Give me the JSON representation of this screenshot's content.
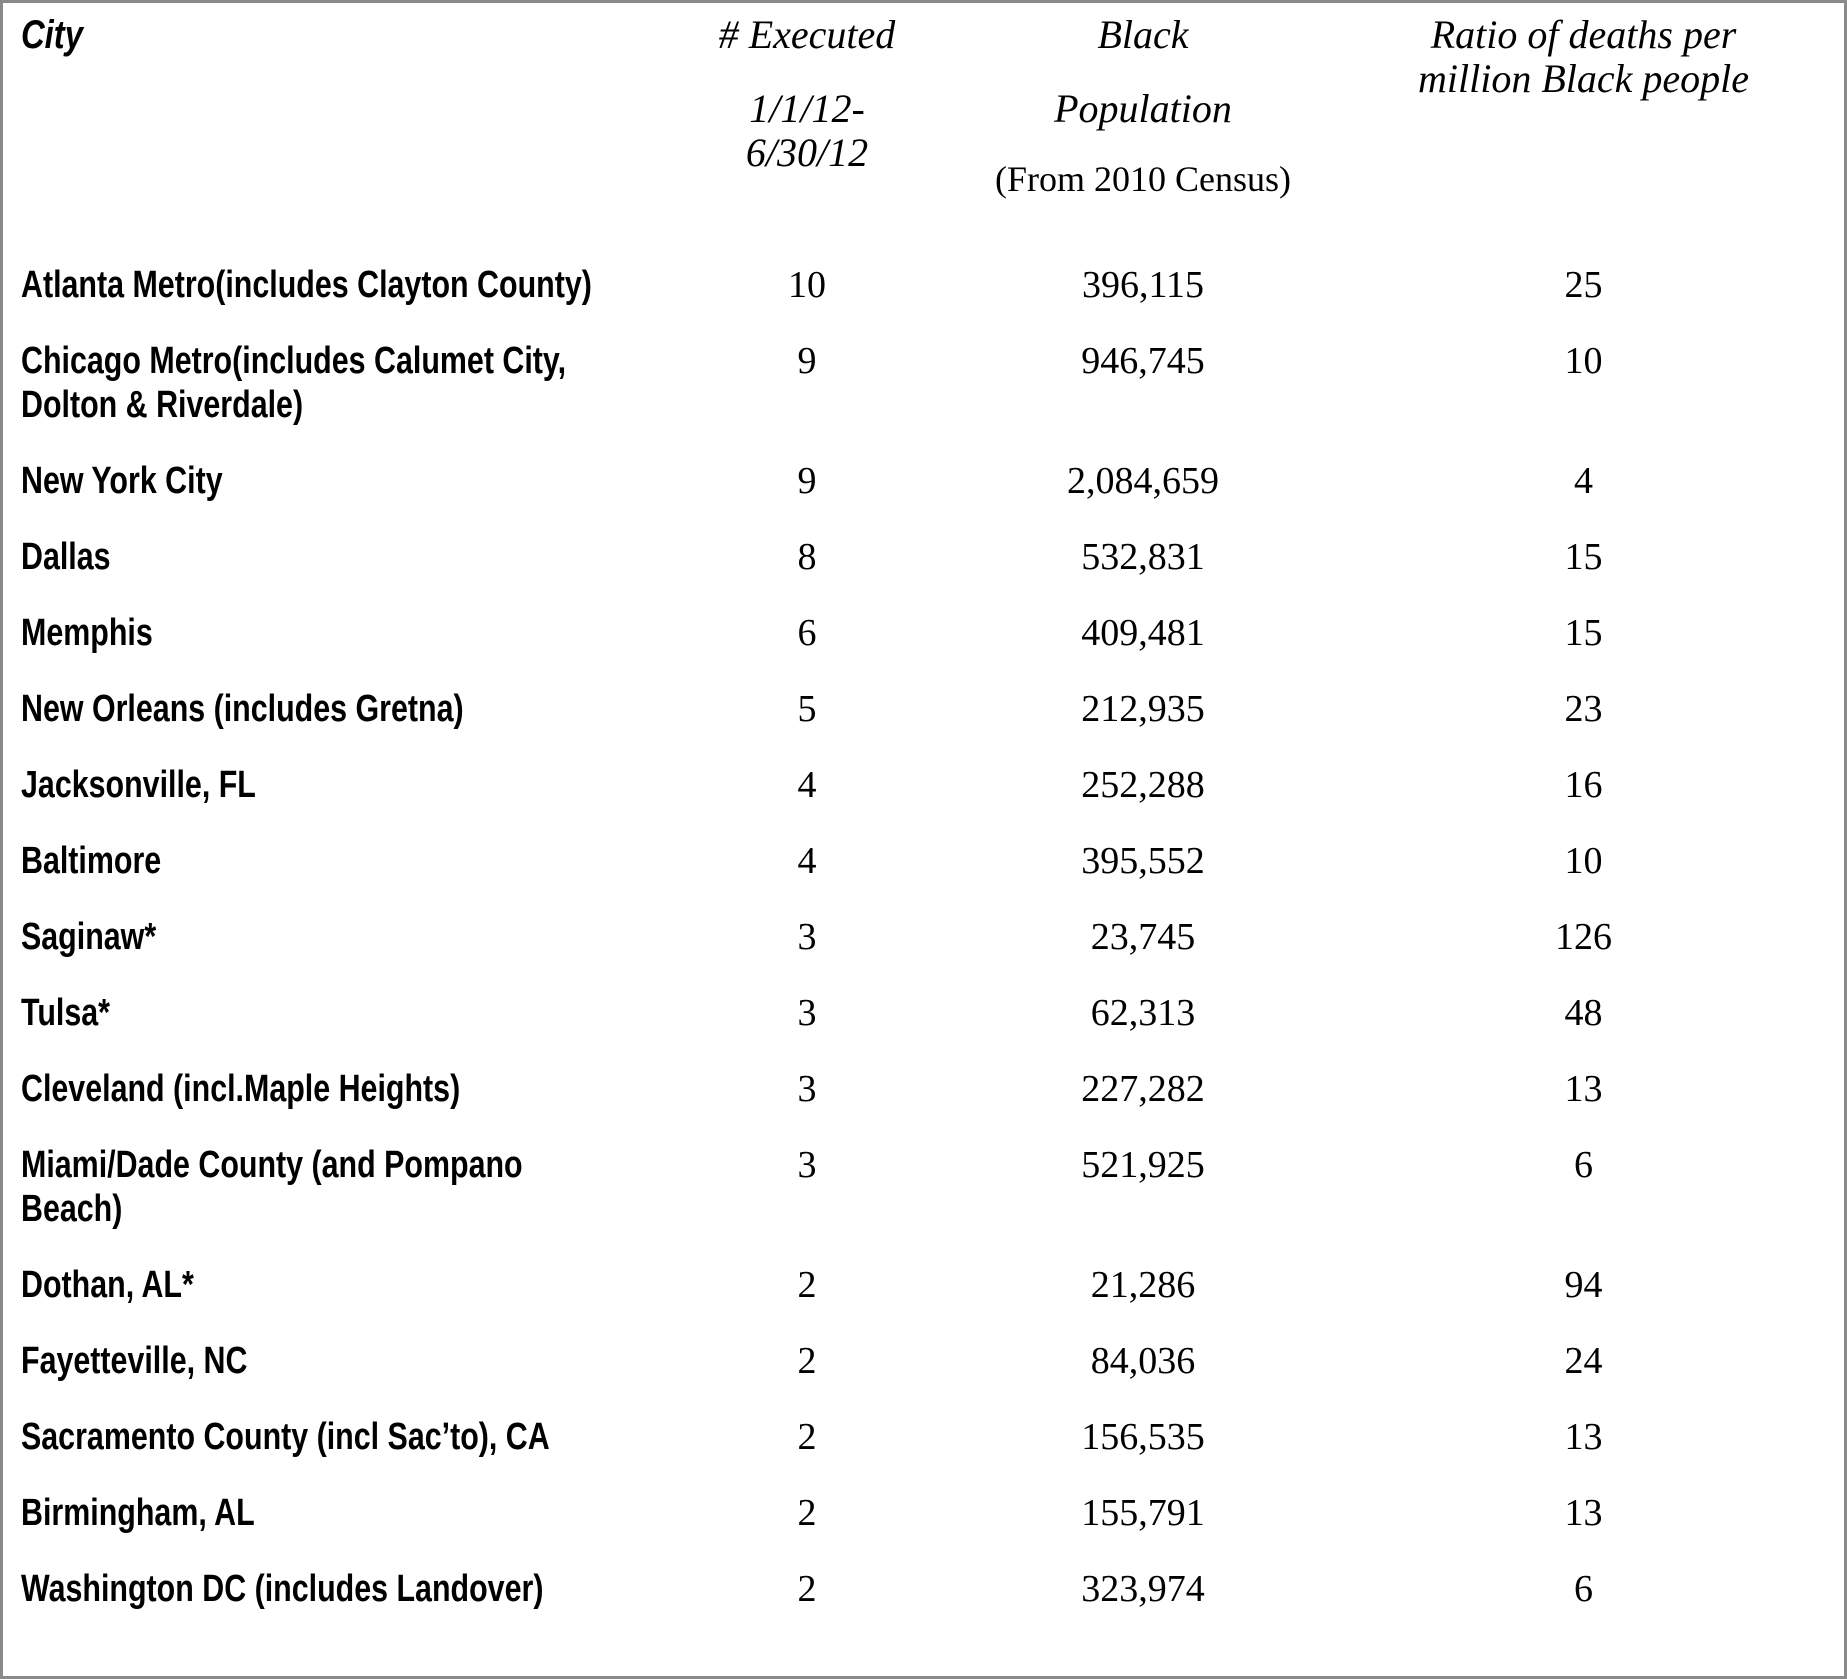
{
  "page": {
    "background": "#ffffff",
    "border_color": "#8a8a8a",
    "text_color": "#000000"
  },
  "table": {
    "header": {
      "city": "City",
      "executed_label": "# Executed",
      "executed_period_line1": "1/1/12-",
      "executed_period_line2": "6/30/12",
      "population_line1": "Black",
      "population_line2": "Population",
      "population_note": "(From 2010 Census)",
      "ratio_line1": "Ratio of deaths per",
      "ratio_line2": "million Black people"
    },
    "rows": [
      {
        "city": "Atlanta Metro(includes Clayton County)",
        "executed": "10",
        "population": "396,115",
        "ratio": "25"
      },
      {
        "city": "Chicago Metro(includes Calumet City, Dolton & Riverdale)",
        "executed": "9",
        "population": "946,745",
        "ratio": "10"
      },
      {
        "city": "New York City",
        "executed": "9",
        "population": "2,084,659",
        "ratio": "4"
      },
      {
        "city": "Dallas",
        "executed": "8",
        "population": "532,831",
        "ratio": "15"
      },
      {
        "city": "Memphis",
        "executed": "6",
        "population": "409,481",
        "ratio": "15"
      },
      {
        "city": "New Orleans  (includes Gretna)",
        "executed": "5",
        "population": "212,935",
        "ratio": "23"
      },
      {
        "city": "Jacksonville, FL",
        "executed": "4",
        "population": "252,288",
        "ratio": "16"
      },
      {
        "city": "Baltimore",
        "executed": "4",
        "population": "395,552",
        "ratio": "10"
      },
      {
        "city": "Saginaw*",
        "executed": "3",
        "population": "23,745",
        "ratio": "126"
      },
      {
        "city": "Tulsa*",
        "executed": "3",
        "population": "62,313",
        "ratio": "48"
      },
      {
        "city": "Cleveland (incl.Maple Heights)",
        "executed": "3",
        "population": "227,282",
        "ratio": "13"
      },
      {
        "city": "Miami/Dade County (and Pompano Beach)",
        "executed": "3",
        "population": "521,925",
        "ratio": "6"
      },
      {
        "city": "Dothan, AL*",
        "executed": "2",
        "population": "21,286",
        "ratio": "94"
      },
      {
        "city": "Fayetteville, NC",
        "executed": "2",
        "population": "84,036",
        "ratio": "24"
      },
      {
        "city": "Sacramento County (incl Sac’to), CA",
        "executed": "2",
        "population": "156,535",
        "ratio": "13"
      },
      {
        "city": "Birmingham, AL",
        "executed": "2",
        "population": "155,791",
        "ratio": "13"
      },
      {
        "city": "Washington DC (includes Landover)",
        "executed": "2",
        "population": "323,974",
        "ratio": "6"
      }
    ]
  },
  "chart_data": {
    "type": "table",
    "title": "",
    "categories": [
      "Atlanta Metro(includes Clayton County)",
      "Chicago Metro(includes Calumet City, Dolton & Riverdale)",
      "New York City",
      "Dallas",
      "Memphis",
      "New Orleans (includes Gretna)",
      "Jacksonville, FL",
      "Baltimore",
      "Saginaw*",
      "Tulsa*",
      "Cleveland (incl.Maple Heights)",
      "Miami/Dade County (and Pompano Beach)",
      "Dothan, AL*",
      "Fayetteville, NC",
      "Sacramento County (incl Sac’to), CA",
      "Birmingham, AL",
      "Washington DC (includes Landover)"
    ],
    "series": [
      {
        "name": "# Executed 1/1/12-6/30/12",
        "values": [
          10,
          9,
          9,
          8,
          6,
          5,
          4,
          4,
          3,
          3,
          3,
          3,
          2,
          2,
          2,
          2,
          2
        ]
      },
      {
        "name": "Black Population (From 2010 Census)",
        "values": [
          396115,
          946745,
          2084659,
          532831,
          409481,
          212935,
          252288,
          395552,
          23745,
          62313,
          227282,
          521925,
          21286,
          84036,
          156535,
          155791,
          323974
        ]
      },
      {
        "name": "Ratio of deaths per million Black people",
        "values": [
          25,
          10,
          4,
          15,
          15,
          23,
          16,
          10,
          126,
          48,
          13,
          6,
          94,
          24,
          13,
          13,
          6
        ]
      }
    ]
  }
}
